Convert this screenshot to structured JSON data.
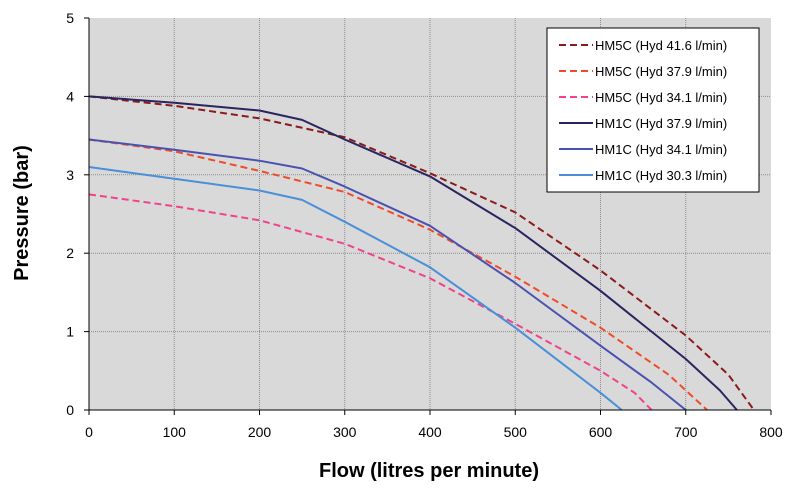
{
  "chart_data": {
    "type": "line",
    "title": "",
    "xlabel": "Flow (litres per minute)",
    "ylabel": "Pressure (bar)",
    "xlim": [
      0,
      800
    ],
    "ylim": [
      0,
      5
    ],
    "x_ticks": [
      "0",
      "100",
      "200",
      "300",
      "400",
      "500",
      "600",
      "700",
      "800"
    ],
    "y_ticks": [
      "0",
      "1",
      "2",
      "3",
      "4",
      "5"
    ],
    "grid": true,
    "plot_background": "#d9d9d9",
    "legend_position": "top-right",
    "series": [
      {
        "name": "HM5C (Hyd 41.6 l/min)",
        "color": "#8b1a1a",
        "dash": true,
        "points": [
          [
            0,
            4.0
          ],
          [
            100,
            3.88
          ],
          [
            200,
            3.72
          ],
          [
            300,
            3.48
          ],
          [
            400,
            3.02
          ],
          [
            500,
            2.52
          ],
          [
            600,
            1.78
          ],
          [
            700,
            0.95
          ],
          [
            750,
            0.45
          ],
          [
            780,
            0.0
          ]
        ]
      },
      {
        "name": "HM5C (Hyd 37.9 l/min)",
        "color": "#f04a28",
        "dash": true,
        "points": [
          [
            0,
            3.45
          ],
          [
            100,
            3.3
          ],
          [
            200,
            3.05
          ],
          [
            300,
            2.78
          ],
          [
            400,
            2.3
          ],
          [
            500,
            1.7
          ],
          [
            600,
            1.05
          ],
          [
            680,
            0.45
          ],
          [
            725,
            0.0
          ]
        ]
      },
      {
        "name": "HM5C (Hyd 34.1 l/min)",
        "color": "#f0438a",
        "dash": true,
        "points": [
          [
            0,
            2.75
          ],
          [
            100,
            2.6
          ],
          [
            200,
            2.42
          ],
          [
            300,
            2.12
          ],
          [
            400,
            1.68
          ],
          [
            500,
            1.1
          ],
          [
            600,
            0.5
          ],
          [
            640,
            0.22
          ],
          [
            660,
            0.0
          ]
        ]
      },
      {
        "name": "HM1C (Hyd 37.9 l/min)",
        "color": "#2a2560",
        "dash": false,
        "points": [
          [
            0,
            4.0
          ],
          [
            100,
            3.92
          ],
          [
            200,
            3.82
          ],
          [
            250,
            3.7
          ],
          [
            300,
            3.45
          ],
          [
            400,
            2.98
          ],
          [
            500,
            2.32
          ],
          [
            600,
            1.52
          ],
          [
            700,
            0.65
          ],
          [
            740,
            0.25
          ],
          [
            760,
            0.0
          ]
        ]
      },
      {
        "name": "HM1C (Hyd 34.1 l/min)",
        "color": "#4a52b0",
        "dash": false,
        "points": [
          [
            0,
            3.45
          ],
          [
            100,
            3.32
          ],
          [
            200,
            3.18
          ],
          [
            250,
            3.08
          ],
          [
            300,
            2.85
          ],
          [
            400,
            2.35
          ],
          [
            500,
            1.62
          ],
          [
            600,
            0.82
          ],
          [
            660,
            0.35
          ],
          [
            700,
            0.0
          ]
        ]
      },
      {
        "name": "HM1C (Hyd 30.3 l/min)",
        "color": "#4a8fd8",
        "dash": false,
        "points": [
          [
            0,
            3.1
          ],
          [
            100,
            2.95
          ],
          [
            200,
            2.8
          ],
          [
            250,
            2.68
          ],
          [
            300,
            2.4
          ],
          [
            400,
            1.82
          ],
          [
            500,
            1.05
          ],
          [
            600,
            0.22
          ],
          [
            625,
            0.0
          ]
        ]
      }
    ]
  }
}
